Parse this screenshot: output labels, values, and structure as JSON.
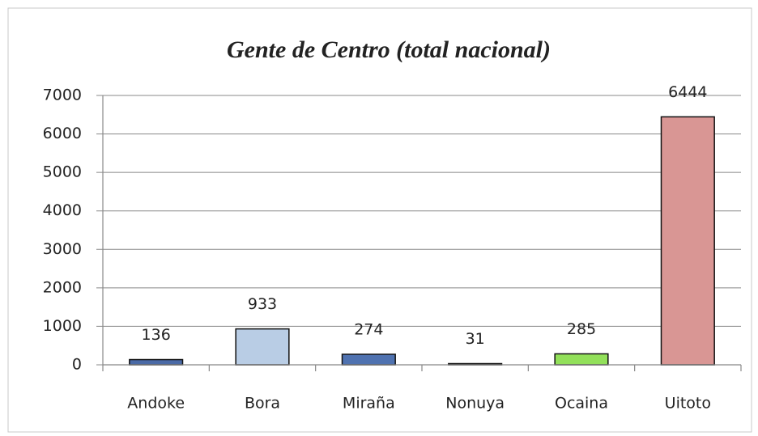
{
  "chart_data": {
    "type": "bar",
    "title": "Gente de Centro (total nacional)",
    "categories": [
      "Andoke",
      "Bora",
      "Miraña",
      "Nonuya",
      "Ocaina",
      "Uitoto"
    ],
    "values": [
      136,
      933,
      274,
      31,
      285,
      6444
    ],
    "colors": [
      "#4a6aa6",
      "#b9cde5",
      "#4f72b0",
      "#7f64a3",
      "#92e05a",
      "#d99694"
    ],
    "ylim": [
      0,
      7000
    ],
    "yticks": [
      0,
      1000,
      2000,
      3000,
      4000,
      5000,
      6000,
      7000
    ],
    "grid": true
  }
}
